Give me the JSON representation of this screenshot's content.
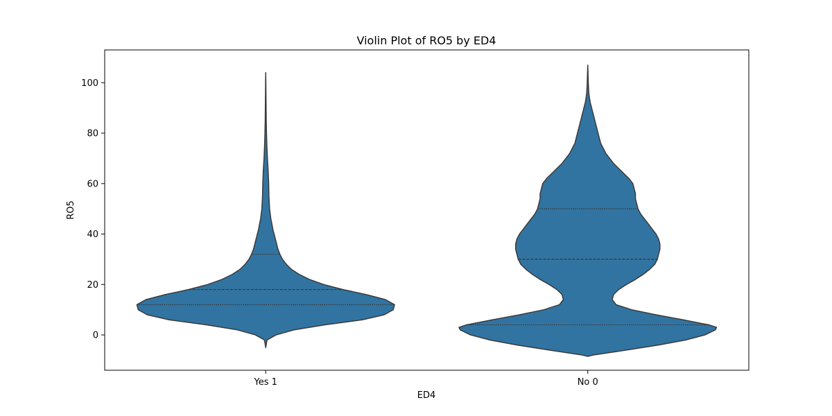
{
  "chart_data": {
    "type": "violin",
    "title": "Violin Plot of RO5 by ED4",
    "xlabel": "ED4",
    "ylabel": "RO5",
    "ylim": [
      -14,
      113
    ],
    "yticks": [
      0,
      20,
      40,
      60,
      80,
      100
    ],
    "grid": false,
    "legend": "none",
    "color": "#3274a1",
    "edge_color": "#3a3a3a",
    "categories": [
      "Yes 1",
      "No 0"
    ],
    "violins": [
      {
        "category": "Yes 1",
        "quartiles": [
          12,
          18,
          32
        ],
        "density": [
          [
            -5,
            0.0
          ],
          [
            -2,
            0.01
          ],
          [
            0,
            0.08
          ],
          [
            2,
            0.22
          ],
          [
            4,
            0.46
          ],
          [
            6,
            0.75
          ],
          [
            8,
            0.92
          ],
          [
            10,
            0.99
          ],
          [
            12,
            1.0
          ],
          [
            14,
            0.93
          ],
          [
            16,
            0.78
          ],
          [
            18,
            0.6
          ],
          [
            20,
            0.45
          ],
          [
            22,
            0.34
          ],
          [
            24,
            0.26
          ],
          [
            26,
            0.2
          ],
          [
            28,
            0.16
          ],
          [
            30,
            0.13
          ],
          [
            32,
            0.11
          ],
          [
            34,
            0.095
          ],
          [
            36,
            0.085
          ],
          [
            38,
            0.075
          ],
          [
            40,
            0.065
          ],
          [
            42,
            0.055
          ],
          [
            44,
            0.048
          ],
          [
            46,
            0.04
          ],
          [
            50,
            0.03
          ],
          [
            55,
            0.025
          ],
          [
            60,
            0.023
          ],
          [
            65,
            0.019
          ],
          [
            70,
            0.013
          ],
          [
            75,
            0.009
          ],
          [
            80,
            0.006
          ],
          [
            85,
            0.004
          ],
          [
            90,
            0.003
          ],
          [
            95,
            0.002
          ],
          [
            100,
            0.001
          ],
          [
            104,
            0.0
          ]
        ]
      },
      {
        "category": "No 0",
        "quartiles": [
          4,
          30,
          50
        ],
        "density": [
          [
            -8.5,
            0.0
          ],
          [
            -8,
            0.04
          ],
          [
            -6,
            0.3
          ],
          [
            -4,
            0.55
          ],
          [
            -2,
            0.76
          ],
          [
            0,
            0.91
          ],
          [
            2,
            0.99
          ],
          [
            3,
            1.0
          ],
          [
            4,
            0.94
          ],
          [
            6,
            0.74
          ],
          [
            8,
            0.53
          ],
          [
            10,
            0.34
          ],
          [
            12,
            0.22
          ],
          [
            14,
            0.19
          ],
          [
            16,
            0.2
          ],
          [
            18,
            0.24
          ],
          [
            20,
            0.3
          ],
          [
            22,
            0.37
          ],
          [
            24,
            0.43
          ],
          [
            26,
            0.48
          ],
          [
            28,
            0.52
          ],
          [
            30,
            0.54
          ],
          [
            32,
            0.55
          ],
          [
            34,
            0.56
          ],
          [
            36,
            0.56
          ],
          [
            38,
            0.55
          ],
          [
            40,
            0.53
          ],
          [
            42,
            0.5
          ],
          [
            44,
            0.47
          ],
          [
            46,
            0.44
          ],
          [
            48,
            0.41
          ],
          [
            50,
            0.39
          ],
          [
            52,
            0.38
          ],
          [
            54,
            0.37
          ],
          [
            56,
            0.37
          ],
          [
            58,
            0.36
          ],
          [
            60,
            0.35
          ],
          [
            62,
            0.32
          ],
          [
            64,
            0.28
          ],
          [
            66,
            0.24
          ],
          [
            68,
            0.2
          ],
          [
            70,
            0.17
          ],
          [
            72,
            0.14
          ],
          [
            74,
            0.12
          ],
          [
            76,
            0.1
          ],
          [
            78,
            0.09
          ],
          [
            80,
            0.08
          ],
          [
            82,
            0.07
          ],
          [
            84,
            0.06
          ],
          [
            86,
            0.05
          ],
          [
            88,
            0.04
          ],
          [
            90,
            0.03
          ],
          [
            92,
            0.02
          ],
          [
            94,
            0.013
          ],
          [
            96,
            0.008
          ],
          [
            100,
            0.004
          ],
          [
            104,
            0.002
          ],
          [
            107,
            0.0
          ]
        ]
      }
    ]
  }
}
